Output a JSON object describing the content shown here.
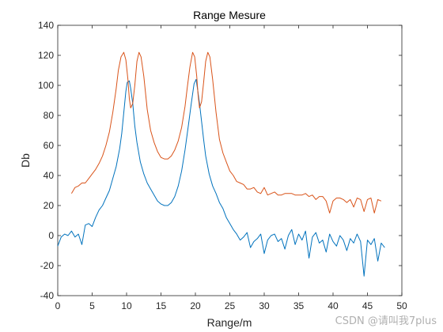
{
  "chart_data": {
    "type": "line",
    "title": "Range Mesure",
    "xlabel": "Range/m",
    "ylabel": "Db",
    "xlim": [
      0,
      50
    ],
    "ylim": [
      -40,
      140
    ],
    "xticks": [
      "0",
      "5",
      "10",
      "15",
      "20",
      "25",
      "30",
      "35",
      "40",
      "45",
      "50"
    ],
    "yticks": [
      "-40",
      "-20",
      "0",
      "20",
      "40",
      "60",
      "80",
      "100",
      "120",
      "140"
    ],
    "grid": false,
    "series": [
      {
        "color": "#0072BD",
        "x": [
          0.0,
          0.5,
          1.0,
          1.5,
          2.0,
          2.5,
          3.0,
          3.5,
          4.0,
          4.5,
          5.0,
          5.5,
          6.0,
          6.5,
          7.0,
          7.5,
          8.0,
          8.5,
          9.0,
          9.3,
          9.6,
          9.9,
          10.1,
          10.4,
          10.6,
          10.9,
          11.2,
          11.5,
          12.0,
          12.5,
          13.0,
          13.5,
          14.0,
          14.5,
          15.0,
          15.5,
          16.0,
          16.5,
          17.0,
          17.5,
          18.0,
          18.5,
          19.0,
          19.4,
          19.8,
          20.1,
          20.3,
          20.6,
          20.9,
          21.2,
          21.5,
          22.0,
          22.5,
          23.0,
          23.5,
          24.0,
          24.5,
          25.0,
          25.5,
          26.0,
          26.5,
          27.0,
          27.5,
          28.0,
          28.5,
          29.0,
          29.5,
          30.0,
          30.5,
          31.0,
          31.5,
          32.0,
          32.5,
          33.0,
          33.5,
          34.0,
          34.5,
          35.0,
          35.5,
          36.0,
          36.5,
          37.0,
          37.5,
          38.0,
          38.5,
          39.0,
          39.5,
          40.0,
          40.5,
          41.0,
          41.5,
          42.0,
          42.5,
          43.0,
          43.5,
          44.0,
          44.5,
          45.0,
          45.5,
          46.0,
          46.5,
          47.0,
          47.5
        ],
        "y": [
          -7,
          -1,
          1,
          0,
          3,
          -1,
          1,
          -6,
          7,
          8,
          6,
          12,
          17,
          20,
          25,
          30,
          38,
          46,
          58,
          68,
          82,
          96,
          102,
          103,
          98,
          88,
          73,
          62,
          49,
          41,
          35,
          31,
          27,
          23,
          21,
          20,
          20,
          22,
          26,
          33,
          43,
          57,
          74,
          88,
          101,
          104,
          98,
          88,
          76,
          64,
          53,
          41,
          33,
          28,
          22,
          18,
          12,
          8,
          4,
          1,
          -3,
          -1,
          2,
          -8,
          -4,
          -2,
          1,
          -12,
          -3,
          0,
          1,
          -4,
          -2,
          -9,
          0,
          4,
          -6,
          1,
          -3,
          3,
          -15,
          -1,
          2,
          -5,
          -3,
          -11,
          1,
          -4,
          -7,
          0,
          -3,
          -10,
          -2,
          -5,
          1,
          -4,
          -27,
          -3,
          -6,
          -2,
          -17,
          -5,
          -8
        ]
      },
      {
        "color": "#D95319",
        "x": [
          2.0,
          2.5,
          3.0,
          3.5,
          4.0,
          4.5,
          5.0,
          5.5,
          6.0,
          6.5,
          7.0,
          7.5,
          8.0,
          8.5,
          8.8,
          9.2,
          9.6,
          9.9,
          10.2,
          10.4,
          10.6,
          10.9,
          11.2,
          11.5,
          11.8,
          12.1,
          12.5,
          13.0,
          13.5,
          14.0,
          14.5,
          15.0,
          15.5,
          16.0,
          16.5,
          17.0,
          17.5,
          18.0,
          18.5,
          18.8,
          19.2,
          19.6,
          19.9,
          20.2,
          20.4,
          20.6,
          20.9,
          21.2,
          21.5,
          21.8,
          22.1,
          22.5,
          23.0,
          23.5,
          24.0,
          24.5,
          25.0,
          25.5,
          26.0,
          26.5,
          27.0,
          27.5,
          28.0,
          28.5,
          29.0,
          29.5,
          30.0,
          30.5,
          31.0,
          31.5,
          32.0,
          32.5,
          33.0,
          33.5,
          34.0,
          34.5,
          35.0,
          35.5,
          36.0,
          36.5,
          37.0,
          37.5,
          38.0,
          38.5,
          39.0,
          39.5,
          40.0,
          40.5,
          41.0,
          41.5,
          42.0,
          42.5,
          43.0,
          43.5,
          44.0,
          44.5,
          45.0,
          45.5,
          46.0,
          46.5,
          47.0
        ],
        "y": [
          28,
          32,
          33,
          35,
          35,
          38,
          41,
          44,
          48,
          53,
          60,
          69,
          82,
          98,
          110,
          119,
          122,
          117,
          104,
          91,
          85,
          88,
          100,
          116,
          122,
          119,
          106,
          84,
          70,
          62,
          56,
          52,
          51,
          51,
          53,
          57,
          63,
          72,
          86,
          98,
          112,
          122,
          119,
          106,
          93,
          85,
          89,
          102,
          116,
          122,
          119,
          104,
          82,
          64,
          55,
          49,
          43,
          40,
          36,
          35,
          34,
          31,
          31,
          32,
          29,
          28,
          32,
          27,
          28,
          29,
          27,
          27,
          28,
          28,
          28,
          27,
          27,
          27,
          28,
          26,
          27,
          24,
          26,
          26,
          23,
          15,
          23,
          25,
          25,
          24,
          22,
          24,
          19,
          25,
          24,
          16,
          24,
          25,
          15,
          24,
          23
        ]
      }
    ]
  },
  "watermark": "CSDN @请叫我7plus"
}
